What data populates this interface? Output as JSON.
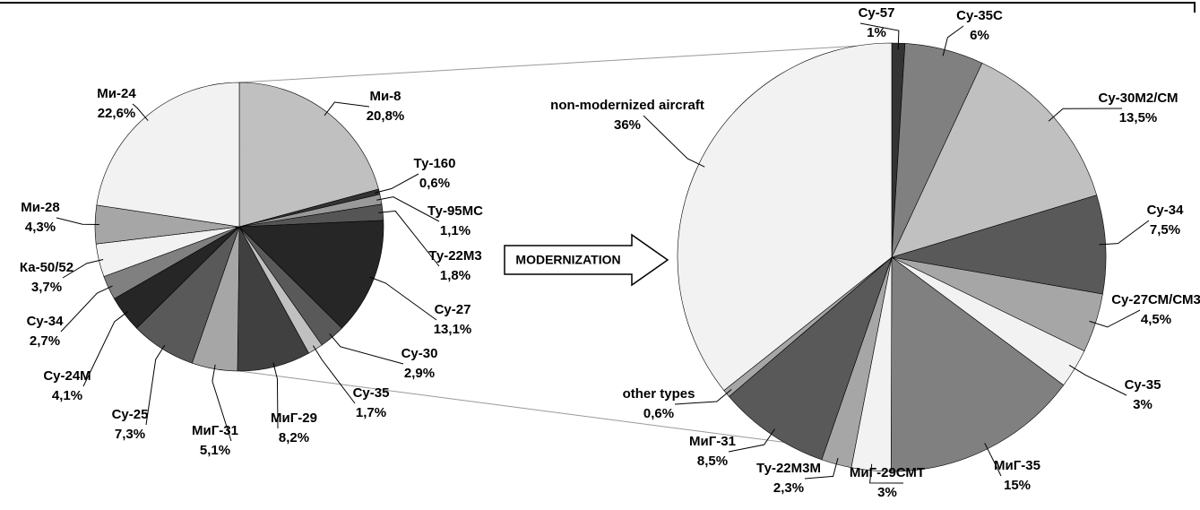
{
  "annotation": "MODERNIZATION",
  "chart_data": [
    {
      "type": "pie",
      "categories": [
        "Ми-8",
        "Ту-160",
        "Ту-95МС",
        "Ту-22М3",
        "Су-27",
        "Су-30",
        "Су-35",
        "МиГ-29",
        "МиГ-31",
        "Су-25",
        "Су-24М",
        "Су-34",
        "Ка-50/52",
        "Ми-28",
        "Ми-24"
      ],
      "values": [
        20.8,
        0.6,
        1.1,
        1.8,
        13.1,
        2.9,
        1.7,
        8.2,
        5.1,
        7.3,
        4.1,
        2.7,
        3.7,
        4.3,
        22.6
      ],
      "value_labels": [
        "20,8%",
        "0,6%",
        "1,1%",
        "1,8%",
        "13,1%",
        "2,9%",
        "1,7%",
        "8,2%",
        "5,1%",
        "7,3%",
        "4,1%",
        "2,7%",
        "3,7%",
        "4,3%",
        "22,6%"
      ],
      "colors": [
        "#c0c0c0",
        "#333333",
        "#999999",
        "#555555",
        "#262626",
        "#595959",
        "#c0c0c0",
        "#404040",
        "#a6a6a6",
        "#595959",
        "#262626",
        "#808080",
        "#f2f2f2",
        "#a6a6a6",
        "#f2f2f2"
      ]
    },
    {
      "type": "pie",
      "categories": [
        "Су-57",
        "Су-35С",
        "Су-30М2/СМ",
        "Су-34",
        "Су-27СМ/СМ3",
        "Су-35",
        "МиГ-35",
        "МиГ-29СМТ",
        "Ту-22М3М",
        "МиГ-31",
        "other types",
        "non-modernized aircraft"
      ],
      "values": [
        1,
        6,
        13.5,
        7.5,
        4.5,
        3,
        15,
        3,
        2.3,
        8.5,
        0.6,
        36
      ],
      "value_labels": [
        "1%",
        "6%",
        "13,5%",
        "7,5%",
        "4,5%",
        "3%",
        "15%",
        "3%",
        "2,3%",
        "8,5%",
        "0,6%",
        "36%"
      ],
      "colors": [
        "#333333",
        "#808080",
        "#c0c0c0",
        "#595959",
        "#a6a6a6",
        "#f2f2f2",
        "#808080",
        "#f2f2f2",
        "#a6a6a6",
        "#595959",
        "#a6a6a6",
        "#f2f2f2"
      ]
    }
  ]
}
